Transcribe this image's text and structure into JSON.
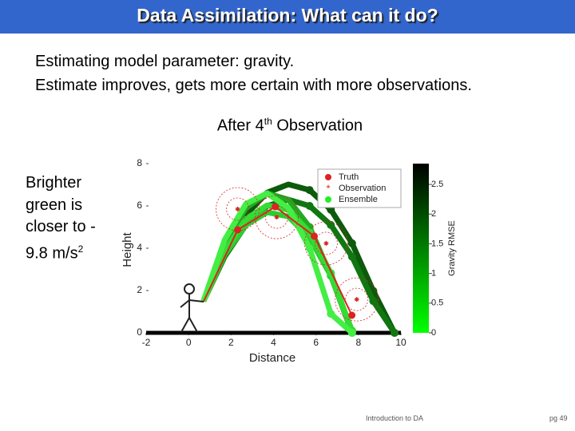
{
  "header": {
    "title": "Data Assimilation: What can it do?"
  },
  "body": {
    "lines": [
      "Estimating model parameter: gravity.",
      "Estimate improves, gets more certain with more observations."
    ]
  },
  "caption": [
    "After 4",
    "th",
    " Observation"
  ],
  "side_note": [
    "Brighter",
    "green is",
    "closer to -",
    "9.8 m/s",
    "2"
  ],
  "footer": {
    "left": "Introduction to DA",
    "page": "pg 49"
  },
  "chart_data": {
    "type": "line",
    "x_label": "Distance",
    "y_label": "Height",
    "colorbar_label": "Gravity RMSE",
    "series_names": [
      "Truth",
      "Observation",
      "Ensemble"
    ],
    "xlim": [
      -2,
      10
    ],
    "xticks": [
      -2,
      0,
      2,
      4,
      6,
      8,
      10
    ],
    "ylim": [
      0,
      8
    ],
    "yticks": [
      0,
      2,
      4,
      6,
      8
    ],
    "clim": [
      0,
      2.85
    ],
    "cticks": [
      0,
      0.5,
      1,
      1.5,
      2,
      2.5
    ],
    "truth": {
      "color": "#dd2222",
      "x": [
        0.7,
        2.31,
        4.08,
        5.92,
        7.69
      ],
      "values": [
        1.47,
        4.87,
        5.96,
        4.57,
        0.83
      ]
    },
    "observations": {
      "color": "#dd2222",
      "x": [
        2.31,
        4.15,
        6.48,
        7.92
      ],
      "values": [
        5.85,
        5.47,
        4.23,
        1.58
      ]
    },
    "ensemble": {
      "x": [
        0.7,
        1.7,
        2.7,
        3.7,
        4.7,
        5.7,
        6.7,
        7.7,
        8.7,
        9.7
      ],
      "series": [
        {
          "color": "#0c5a0c",
          "values": [
            1.5,
            3.87,
            5.58,
            6.63,
            7.02,
            6.75,
            5.82,
            4.23,
            1.98,
            0
          ]
        },
        {
          "color": "#117711",
          "values": [
            1.5,
            3.6,
            5.1,
            6.0,
            6.3,
            6.0,
            5.1,
            3.6,
            1.5,
            0
          ]
        },
        {
          "color": "#22aa22",
          "values": [
            1.5,
            4.2,
            5.9,
            6.6,
            6.3,
            5.0,
            2.7,
            0,
            null,
            null
          ]
        },
        {
          "color": "#2fcc2f",
          "values": [
            1.5,
            3.7,
            5.1,
            5.7,
            5.5,
            4.5,
            2.7,
            0.1,
            null,
            null
          ]
        },
        {
          "color": "#33dd33",
          "values": [
            1.5,
            3.87,
            5.38,
            6.03,
            5.82,
            4.75,
            2.82,
            0.04,
            null,
            null
          ]
        },
        {
          "color": "#44ee44",
          "values": [
            1.5,
            4.4,
            6.1,
            6.6,
            5.9,
            4.0,
            0.9,
            0,
            null,
            null
          ]
        }
      ]
    }
  }
}
